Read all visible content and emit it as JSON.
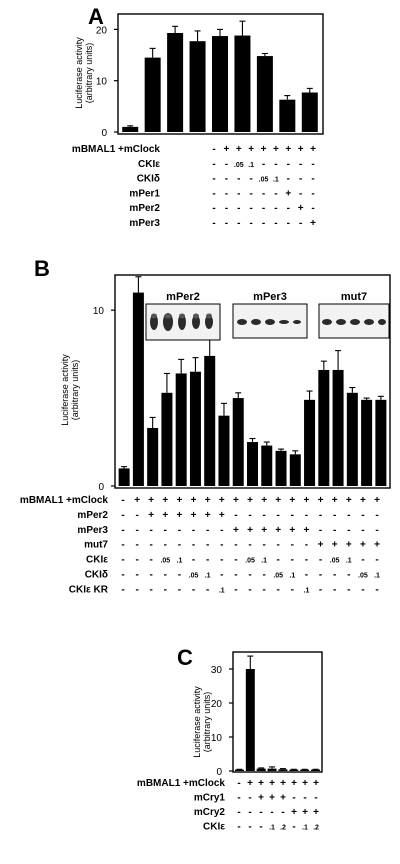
{
  "chart_data": [
    {
      "panel": "A",
      "type": "bar",
      "ylabel": [
        "Luciferase activity",
        "(arbitrary units)"
      ],
      "ylim": [
        0,
        23
      ],
      "yticks": [
        0,
        10,
        20
      ],
      "values": [
        1.0,
        14.5,
        19.3,
        17.7,
        18.7,
        18.8,
        14.8,
        6.3,
        7.7
      ],
      "errors": [
        0.2,
        1.8,
        1.3,
        2.0,
        1.3,
        2.8,
        0.5,
        0.8,
        0.8
      ],
      "rows": [
        {
          "label": "mBMAL1 +mClock",
          "marks": [
            "-",
            "+",
            "+",
            "+",
            "+",
            "+",
            "+",
            "+",
            "+"
          ]
        },
        {
          "label": "CKIε",
          "marks": [
            "-",
            "-",
            ".05",
            ".1",
            "-",
            "-",
            "-",
            "-",
            "-"
          ]
        },
        {
          "label": "CKIδ",
          "marks": [
            "-",
            "-",
            "-",
            "-",
            ".05",
            ".1",
            "-",
            "-",
            "-"
          ]
        },
        {
          "label": "mPer1",
          "marks": [
            "-",
            "-",
            "-",
            "-",
            "-",
            "-",
            "+",
            "-",
            "-"
          ]
        },
        {
          "label": "mPer2",
          "marks": [
            "-",
            "-",
            "-",
            "-",
            "-",
            "-",
            "-",
            "+",
            "-"
          ]
        },
        {
          "label": "mPer3",
          "marks": [
            "-",
            "-",
            "-",
            "-",
            "-",
            "-",
            "-",
            "-",
            "+"
          ]
        }
      ]
    },
    {
      "panel": "B",
      "type": "bar",
      "ylabel": [
        "Luciferase activity",
        "(arbitrary units)"
      ],
      "ylim": [
        0,
        12
      ],
      "yticks": [
        0,
        10
      ],
      "values": [
        1.0,
        11.0,
        3.3,
        5.3,
        6.4,
        6.5,
        7.4,
        4.0,
        5.0,
        2.5,
        2.3,
        2.0,
        1.8,
        4.9,
        6.6,
        6.6,
        5.3,
        4.9,
        4.9
      ],
      "errors": [
        0.1,
        0.9,
        0.6,
        1.1,
        0.8,
        0.8,
        1.0,
        0.7,
        0.3,
        0.2,
        0.2,
        0.1,
        0.2,
        0.5,
        0.5,
        1.1,
        0.3,
        0.1,
        0.2
      ],
      "blots": [
        "mPer2",
        "mPer3",
        "mut7"
      ],
      "rows": [
        {
          "label": "mBMAL1 +mClock",
          "marks": [
            "-",
            "+",
            "+",
            "+",
            "+",
            "+",
            "+",
            "+",
            "+",
            "+",
            "+",
            "+",
            "+",
            "+",
            "+",
            "+",
            "+",
            "+",
            "+"
          ]
        },
        {
          "label": "mPer2",
          "marks": [
            "-",
            "-",
            "+",
            "+",
            "+",
            "+",
            "+",
            "+",
            "-",
            "-",
            "-",
            "-",
            "-",
            "-",
            "-",
            "-",
            "-",
            "-",
            "-"
          ]
        },
        {
          "label": "mPer3",
          "marks": [
            "-",
            "-",
            "-",
            "-",
            "-",
            "-",
            "-",
            "-",
            "+",
            "+",
            "+",
            "+",
            "+",
            "+",
            "-",
            "-",
            "-",
            "-",
            "-"
          ]
        },
        {
          "label": "mut7",
          "marks": [
            "-",
            "-",
            "-",
            "-",
            "-",
            "-",
            "-",
            "-",
            "-",
            "-",
            "-",
            "-",
            "-",
            "-",
            "+",
            "+",
            "+",
            "+",
            "+"
          ]
        },
        {
          "label": "CKIε",
          "marks": [
            "-",
            "-",
            "-",
            ".05",
            ".1",
            "-",
            "-",
            "-",
            "-",
            ".05",
            ".1",
            "-",
            "-",
            "-",
            "-",
            ".05",
            ".1",
            "-",
            "-"
          ]
        },
        {
          "label": "CKIδ",
          "marks": [
            "-",
            "-",
            "-",
            "-",
            "-",
            ".05",
            ".1",
            "-",
            "-",
            "-",
            "-",
            ".05",
            ".1",
            "-",
            "-",
            "-",
            "-",
            ".05",
            ".1"
          ]
        },
        {
          "label": "CKIε KR",
          "marks": [
            "-",
            "-",
            "-",
            "-",
            "-",
            "-",
            "-",
            ".1",
            "-",
            "-",
            "-",
            "-",
            "-",
            ".1",
            "-",
            "-",
            "-",
            "-",
            "-"
          ]
        }
      ]
    },
    {
      "panel": "C",
      "type": "bar",
      "ylabel": [
        "Luciferase activity",
        "(arbitrary units)"
      ],
      "ylim": [
        0,
        35
      ],
      "yticks": [
        0,
        10,
        20,
        30
      ],
      "values": [
        0.4,
        30.0,
        0.7,
        0.7,
        0.5,
        0.4,
        0.4,
        0.4
      ],
      "errors": [
        0.1,
        3.8,
        0.2,
        0.5,
        0.2,
        0.1,
        0.1,
        0.1
      ],
      "rows": [
        {
          "label": "mBMAL1 +mClock",
          "marks": [
            "-",
            "+",
            "+",
            "+",
            "+",
            "+",
            "+",
            "+"
          ]
        },
        {
          "label": "mCry1",
          "marks": [
            "-",
            "-",
            "+",
            "+",
            "+",
            "-",
            "-",
            "-"
          ]
        },
        {
          "label": "mCry2",
          "marks": [
            "-",
            "-",
            "-",
            "-",
            "-",
            "+",
            "+",
            "+"
          ]
        },
        {
          "label": "CKIε",
          "marks": [
            "-",
            "-",
            "-",
            ".1",
            ".2",
            "-",
            ".1",
            ".2"
          ]
        }
      ]
    }
  ]
}
